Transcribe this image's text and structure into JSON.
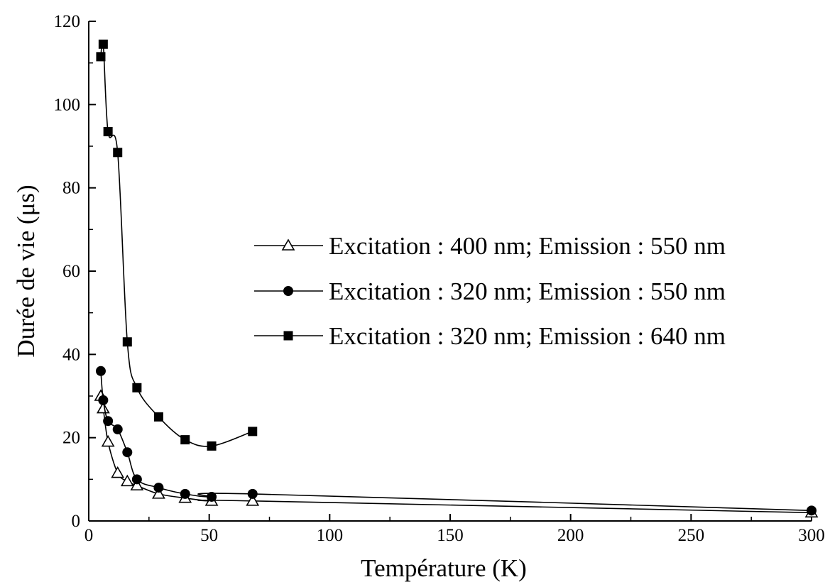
{
  "chart_data": {
    "type": "line",
    "title": "",
    "xlabel": "Température (K)",
    "ylabel": "Durée de vie (μs)",
    "xlim": [
      0,
      300
    ],
    "ylim": [
      0,
      120
    ],
    "xticks": [
      "0",
      "50",
      "100",
      "150",
      "200",
      "250",
      "300"
    ],
    "yticks": [
      "0",
      "20",
      "40",
      "60",
      "80",
      "100",
      "120"
    ],
    "grid": false,
    "legend_position": "center-right",
    "series": [
      {
        "name": "Excitation : 400 nm; Emission : 550 nm",
        "marker": "triangle-open",
        "color": "#000000",
        "x": [
          5,
          6,
          8,
          12,
          16,
          20,
          29,
          40,
          51,
          68,
          300
        ],
        "y": [
          30,
          27,
          19,
          11.5,
          9.5,
          8.5,
          6.5,
          5.5,
          4.8,
          4.8,
          2
        ]
      },
      {
        "name": "Excitation : 320 nm; Emission : 550 nm",
        "marker": "circle-filled",
        "color": "#000000",
        "x": [
          5,
          6,
          8,
          12,
          16,
          20,
          29,
          40,
          51,
          68,
          300
        ],
        "y": [
          36,
          29,
          24,
          22,
          16.5,
          10,
          8,
          6.5,
          5.8,
          6.5,
          2.5
        ]
      },
      {
        "name": "Excitation : 320 nm; Emission : 640 nm",
        "marker": "square-filled",
        "color": "#000000",
        "x": [
          5,
          6,
          8,
          12,
          16,
          20,
          29,
          40,
          51,
          68
        ],
        "y": [
          111.5,
          114.5,
          93.5,
          88.5,
          43,
          32,
          25,
          19.5,
          18,
          21.5
        ]
      }
    ]
  }
}
